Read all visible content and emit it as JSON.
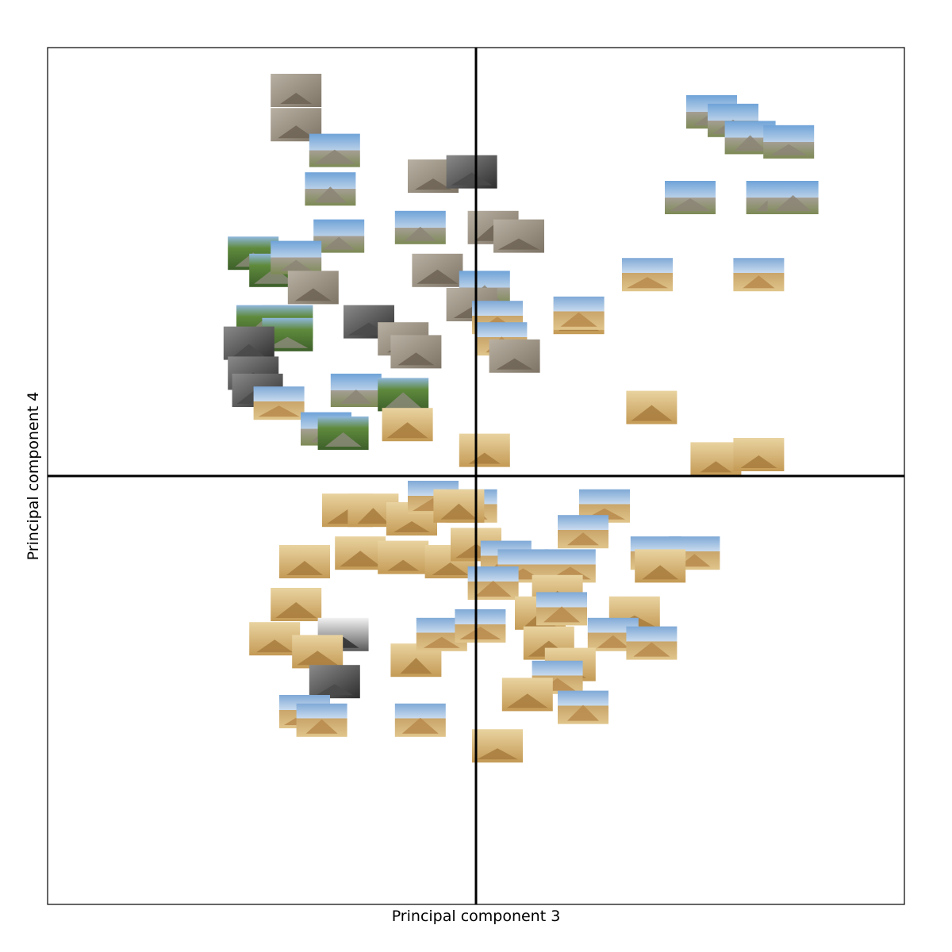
{
  "chart_data": {
    "type": "scatter",
    "title": "",
    "xlabel": "Principal component 3",
    "ylabel": "Principal component 4",
    "xlim": [
      -1,
      1
    ],
    "ylim": [
      -1,
      1
    ],
    "grid": false,
    "tick_labels": false,
    "point_marker": "image thumbnail",
    "colors": {
      "frame": "#000000",
      "sky_blue": "#6fa3d8",
      "sand": "#d8b46a",
      "stone_gray": "#a59f94",
      "jungle_green": "#5f8a3c",
      "dark_stone": "#5a4a3a"
    },
    "points": [
      {
        "x": -0.42,
        "y": 0.9,
        "style": "stone"
      },
      {
        "x": -0.42,
        "y": 0.82,
        "style": "stone"
      },
      {
        "x": -0.33,
        "y": 0.76,
        "style": "maya-sky"
      },
      {
        "x": -0.34,
        "y": 0.67,
        "style": "maya-sky"
      },
      {
        "x": -0.1,
        "y": 0.7,
        "style": "stone"
      },
      {
        "x": -0.01,
        "y": 0.71,
        "style": "dark"
      },
      {
        "x": -0.13,
        "y": 0.58,
        "style": "maya-sky"
      },
      {
        "x": 0.04,
        "y": 0.58,
        "style": "stone"
      },
      {
        "x": 0.1,
        "y": 0.56,
        "style": "stone"
      },
      {
        "x": -0.32,
        "y": 0.56,
        "style": "maya-sky"
      },
      {
        "x": -0.52,
        "y": 0.52,
        "style": "jungle"
      },
      {
        "x": -0.47,
        "y": 0.48,
        "style": "jungle"
      },
      {
        "x": -0.42,
        "y": 0.51,
        "style": "maya-sky"
      },
      {
        "x": -0.38,
        "y": 0.44,
        "style": "stone"
      },
      {
        "x": -0.09,
        "y": 0.48,
        "style": "stone"
      },
      {
        "x": 0.02,
        "y": 0.44,
        "style": "maya-sky"
      },
      {
        "x": -0.01,
        "y": 0.4,
        "style": "stone"
      },
      {
        "x": -0.25,
        "y": 0.36,
        "style": "dark"
      },
      {
        "x": -0.5,
        "y": 0.36,
        "style": "jungle"
      },
      {
        "x": -0.44,
        "y": 0.36,
        "style": "jungle"
      },
      {
        "x": -0.44,
        "y": 0.33,
        "style": "jungle"
      },
      {
        "x": -0.53,
        "y": 0.31,
        "style": "dark"
      },
      {
        "x": -0.52,
        "y": 0.24,
        "style": "dark"
      },
      {
        "x": -0.51,
        "y": 0.2,
        "style": "dark"
      },
      {
        "x": -0.17,
        "y": 0.32,
        "style": "stone"
      },
      {
        "x": -0.14,
        "y": 0.29,
        "style": "stone"
      },
      {
        "x": 0.05,
        "y": 0.37,
        "style": "sky-sand"
      },
      {
        "x": 0.06,
        "y": 0.32,
        "style": "sky-sand"
      },
      {
        "x": 0.09,
        "y": 0.28,
        "style": "stone"
      },
      {
        "x": 0.24,
        "y": 0.37,
        "style": "sand"
      },
      {
        "x": -0.28,
        "y": 0.2,
        "style": "maya-sky"
      },
      {
        "x": -0.17,
        "y": 0.19,
        "style": "jungle"
      },
      {
        "x": -0.46,
        "y": 0.17,
        "style": "sky-sand"
      },
      {
        "x": -0.35,
        "y": 0.11,
        "style": "maya-sky"
      },
      {
        "x": -0.31,
        "y": 0.1,
        "style": "jungle"
      },
      {
        "x": -0.16,
        "y": 0.12,
        "style": "sand"
      },
      {
        "x": 0.02,
        "y": 0.06,
        "style": "sand"
      },
      {
        "x": 0.55,
        "y": 0.85,
        "style": "maya-sky"
      },
      {
        "x": 0.6,
        "y": 0.83,
        "style": "maya-sky"
      },
      {
        "x": 0.64,
        "y": 0.79,
        "style": "maya-sky"
      },
      {
        "x": 0.73,
        "y": 0.78,
        "style": "maya-sky"
      },
      {
        "x": 0.5,
        "y": 0.65,
        "style": "maya-sky"
      },
      {
        "x": 0.69,
        "y": 0.65,
        "style": "maya-sky"
      },
      {
        "x": 0.74,
        "y": 0.65,
        "style": "maya-sky"
      },
      {
        "x": 0.4,
        "y": 0.47,
        "style": "sky-sand"
      },
      {
        "x": 0.66,
        "y": 0.47,
        "style": "sky-sand"
      },
      {
        "x": 0.24,
        "y": 0.38,
        "style": "sky-sand"
      },
      {
        "x": 0.41,
        "y": 0.16,
        "style": "sand"
      },
      {
        "x": 0.56,
        "y": 0.04,
        "style": "sand"
      },
      {
        "x": 0.66,
        "y": 0.05,
        "style": "sand"
      },
      {
        "x": -0.3,
        "y": -0.08,
        "style": "sand"
      },
      {
        "x": -0.24,
        "y": -0.08,
        "style": "sand"
      },
      {
        "x": -0.15,
        "y": -0.1,
        "style": "sand"
      },
      {
        "x": -0.1,
        "y": -0.05,
        "style": "sky-sand"
      },
      {
        "x": -0.01,
        "y": -0.07,
        "style": "sky-sand"
      },
      {
        "x": -0.04,
        "y": -0.07,
        "style": "sand"
      },
      {
        "x": 0.3,
        "y": -0.07,
        "style": "sky-sand"
      },
      {
        "x": 0.25,
        "y": -0.13,
        "style": "sky-sand"
      },
      {
        "x": -0.4,
        "y": -0.2,
        "style": "sand"
      },
      {
        "x": -0.27,
        "y": -0.18,
        "style": "sand"
      },
      {
        "x": -0.17,
        "y": -0.19,
        "style": "sand"
      },
      {
        "x": -0.06,
        "y": -0.2,
        "style": "sand"
      },
      {
        "x": 0.0,
        "y": -0.16,
        "style": "sand"
      },
      {
        "x": 0.07,
        "y": -0.19,
        "style": "sky-sand"
      },
      {
        "x": 0.11,
        "y": -0.21,
        "style": "sky-sand"
      },
      {
        "x": 0.22,
        "y": -0.21,
        "style": "sky-sand"
      },
      {
        "x": 0.19,
        "y": -0.27,
        "style": "sand"
      },
      {
        "x": 0.04,
        "y": -0.25,
        "style": "sky-sand"
      },
      {
        "x": 0.42,
        "y": -0.18,
        "style": "sky-sand"
      },
      {
        "x": 0.51,
        "y": -0.18,
        "style": "sky-sand"
      },
      {
        "x": 0.43,
        "y": -0.21,
        "style": "sand"
      },
      {
        "x": -0.42,
        "y": -0.3,
        "style": "sand"
      },
      {
        "x": -0.31,
        "y": -0.37,
        "style": "gray"
      },
      {
        "x": -0.47,
        "y": -0.38,
        "style": "sand"
      },
      {
        "x": -0.37,
        "y": -0.41,
        "style": "sand"
      },
      {
        "x": -0.14,
        "y": -0.43,
        "style": "sand"
      },
      {
        "x": -0.08,
        "y": -0.37,
        "style": "sky-sand"
      },
      {
        "x": 0.01,
        "y": -0.35,
        "style": "sky-sand"
      },
      {
        "x": 0.15,
        "y": -0.32,
        "style": "sand"
      },
      {
        "x": 0.2,
        "y": -0.31,
        "style": "sky-sand"
      },
      {
        "x": 0.37,
        "y": -0.32,
        "style": "sand"
      },
      {
        "x": 0.32,
        "y": -0.37,
        "style": "sky-sand"
      },
      {
        "x": 0.41,
        "y": -0.39,
        "style": "sky-sand"
      },
      {
        "x": 0.17,
        "y": -0.39,
        "style": "sand"
      },
      {
        "x": 0.22,
        "y": -0.44,
        "style": "sand"
      },
      {
        "x": 0.19,
        "y": -0.47,
        "style": "sky-sand"
      },
      {
        "x": 0.12,
        "y": -0.51,
        "style": "sand"
      },
      {
        "x": 0.25,
        "y": -0.54,
        "style": "sky-sand"
      },
      {
        "x": -0.33,
        "y": -0.48,
        "style": "dark"
      },
      {
        "x": -0.4,
        "y": -0.55,
        "style": "sky-sand"
      },
      {
        "x": -0.36,
        "y": -0.57,
        "style": "sky-sand"
      },
      {
        "x": -0.13,
        "y": -0.57,
        "style": "sky-sand"
      },
      {
        "x": 0.05,
        "y": -0.63,
        "style": "sand"
      }
    ]
  }
}
